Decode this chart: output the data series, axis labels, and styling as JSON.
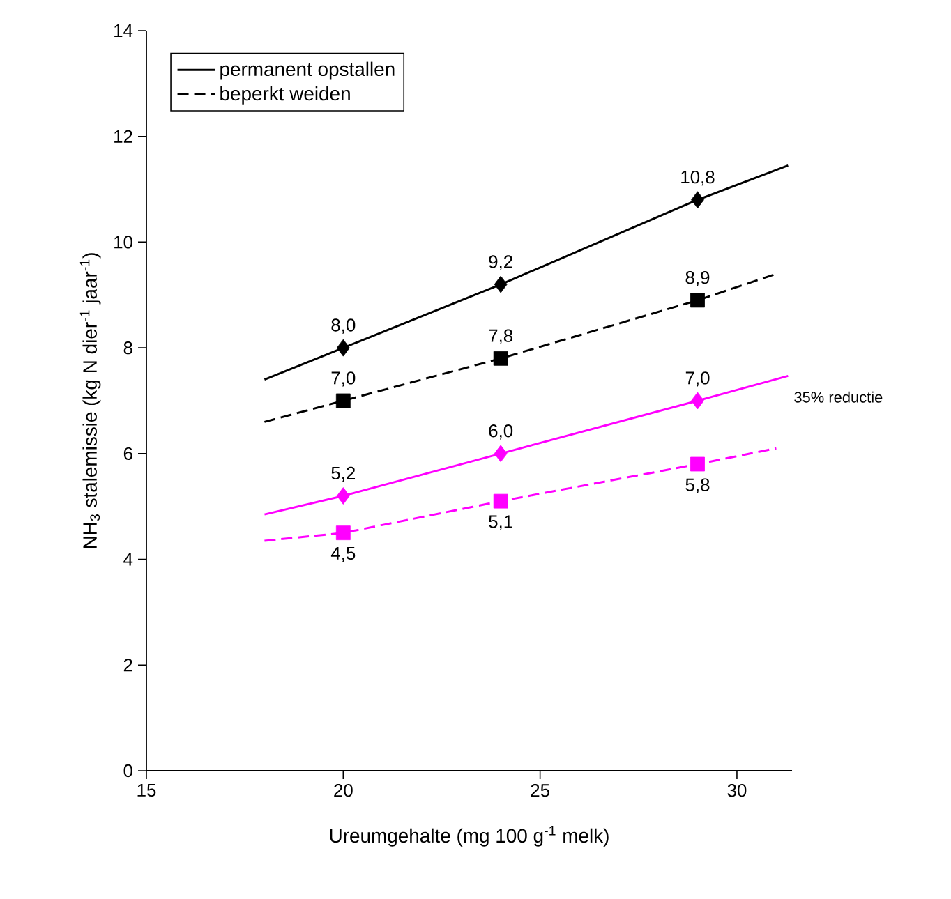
{
  "chart_data": {
    "type": "line",
    "xlabel": "Ureumgehalte (mg 100 g$^{-1}$ melk)",
    "ylabel": "NH$_{3}$ stalemissie (kg N dier$^{-1}$ jaar$^{-1}$)",
    "xlim": [
      15,
      31.4
    ],
    "ylim": [
      0,
      14
    ],
    "xticks": [
      15,
      20,
      25,
      30
    ],
    "yticks": [
      0,
      2,
      4,
      6,
      8,
      10,
      12,
      14
    ],
    "grid": false,
    "legend": "top left",
    "series": [
      {
        "name": "permanent opstallen",
        "color": "#000000",
        "line_style": "solid",
        "marker": "none",
        "x": [
          18,
          20,
          24,
          29,
          31.3
        ],
        "values": [
          7.4,
          8.0,
          9.2,
          10.8,
          11.45
        ]
      },
      {
        "name": "beperkt weiden",
        "color": "#000000",
        "line_style": "dashed",
        "marker": "none",
        "x": [
          18,
          20,
          24,
          29,
          31
        ],
        "values": [
          6.6,
          7.0,
          7.8,
          8.9,
          9.4
        ]
      },
      {
        "color": "#ff00ff",
        "line_style": "solid",
        "marker": "none",
        "x": [
          18,
          20,
          24,
          29,
          31.3
        ],
        "values": [
          4.85,
          5.2,
          6.0,
          7.0,
          7.47
        ]
      },
      {
        "color": "#ff00ff",
        "line_style": "dashed",
        "marker": "none",
        "x": [
          18,
          20,
          24,
          29,
          31
        ],
        "values": [
          4.35,
          4.5,
          5.1,
          5.8,
          6.1
        ]
      },
      {
        "type": "scatter",
        "color": "#000000",
        "marker": "diamond",
        "x": [
          20,
          24,
          29
        ],
        "values": [
          8.0,
          9.2,
          10.8
        ],
        "value_labels": [
          "8,0",
          "9,2",
          "10,8"
        ]
      },
      {
        "type": "scatter",
        "color": "#000000",
        "marker": "square",
        "x": [
          20,
          24,
          29
        ],
        "values": [
          7.0,
          7.8,
          8.9
        ],
        "value_labels": [
          "7,0",
          "7,8",
          "8,9"
        ]
      },
      {
        "type": "scatter",
        "color": "#ff00ff",
        "marker": "diamond",
        "x": [
          20,
          24,
          29
        ],
        "values": [
          5.2,
          6.0,
          7.0
        ],
        "value_labels": [
          "5,2",
          "6,0",
          "7,0"
        ]
      },
      {
        "type": "scatter",
        "color": "#ff00ff",
        "marker": "square",
        "x": [
          20,
          24,
          29
        ],
        "values": [
          4.5,
          5.1,
          5.8
        ],
        "value_labels": [
          "4,5",
          "5,1",
          "5,8"
        ]
      }
    ],
    "annotations": [
      "35% reductie"
    ]
  }
}
